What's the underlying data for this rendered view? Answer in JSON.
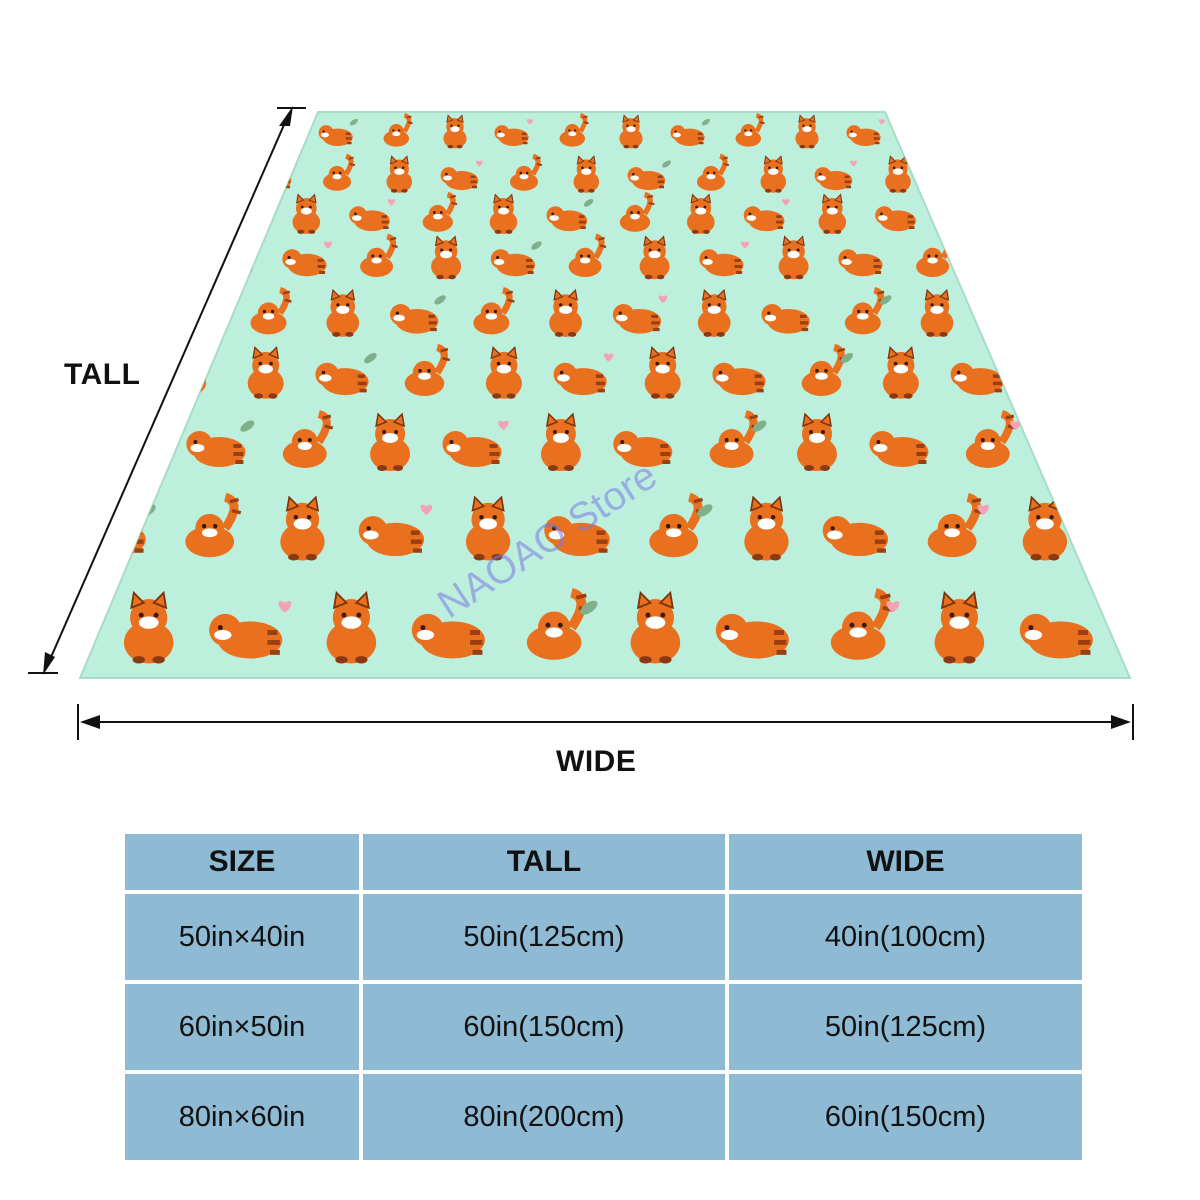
{
  "product": {
    "dimension_labels": {
      "tall": "TALL",
      "wide": "WIDE"
    },
    "watermark": "NAOAO Store",
    "blanket_colors": {
      "background": "#bdf0dc",
      "panda": "#e8701f",
      "stripe": "#9a3f12",
      "leaf": "#7fb08a",
      "heart": "#f3a3b5"
    }
  },
  "size_table": {
    "headers": [
      "SIZE",
      "TALL",
      "WIDE"
    ],
    "rows": [
      [
        "50in×40in",
        "50in(125cm)",
        "40in(100cm)"
      ],
      [
        "60in×50in",
        "60in(150cm)",
        "50in(125cm)"
      ],
      [
        "80in×60in",
        "80in(200cm)",
        "60in(150cm)"
      ]
    ],
    "cell_color": "#8fbad4"
  }
}
